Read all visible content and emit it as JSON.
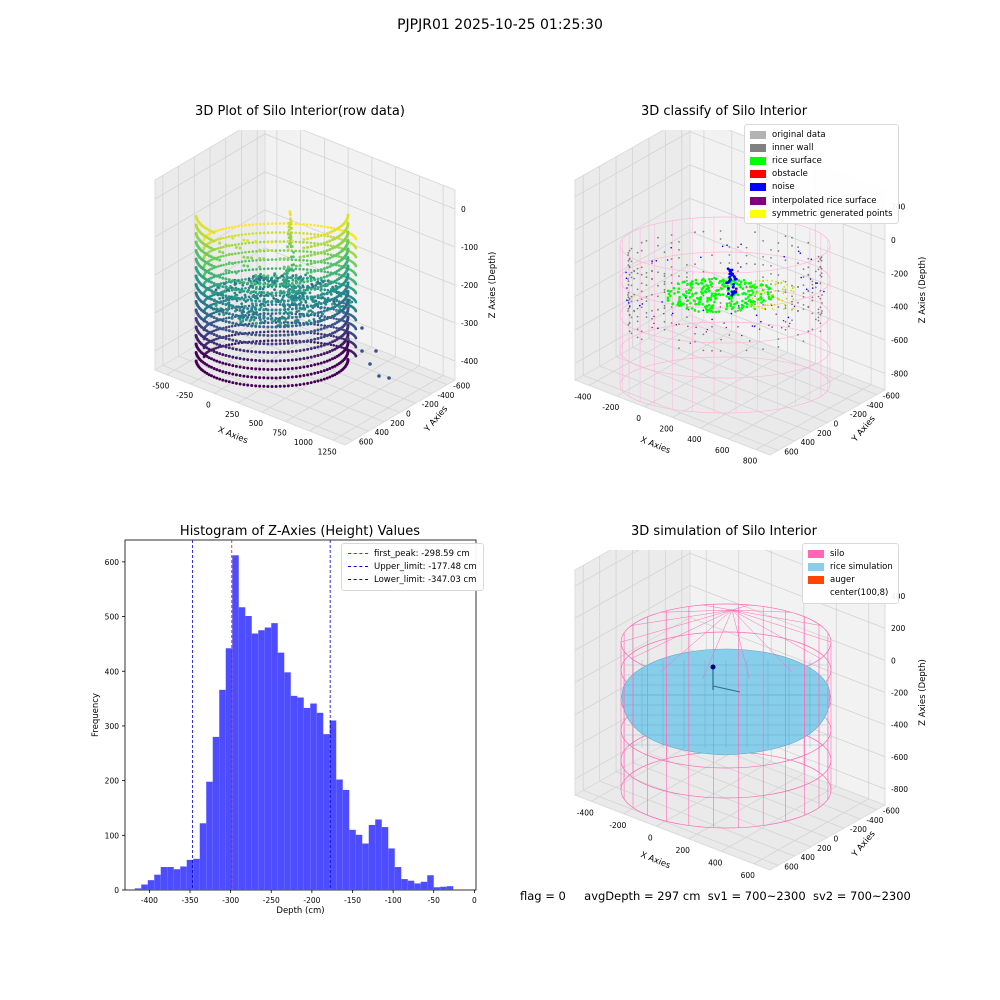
{
  "figure_title": "PJPJR01 2025-10-25 01:25:30",
  "status": {
    "flag": "flag = 0",
    "avg_depth": "avgDepth = 297 cm",
    "sv1": "sv1 = 700~2300",
    "sv2": "sv2 = 700~2300"
  },
  "colors": {
    "hist_bar": "#4d4dff",
    "first_peak": "#ff0000",
    "limits": "#0000cc",
    "viridis": [
      "#440154",
      "#3b528b",
      "#21918c",
      "#5ec962",
      "#fde725"
    ],
    "classify": [
      "#b3b3b3",
      "#808080",
      "#00ff00",
      "#ff0000",
      "#0000ff",
      "#800080",
      "#ffff00"
    ],
    "silo": "#ff69b4",
    "rice_simulation": "#87ceeb",
    "auger": "#ff4500"
  },
  "chart_data": [
    {
      "type": "scatter",
      "projection": "3d",
      "title": "3D Plot of Silo Interior(row data)",
      "xlabel": "X Axies",
      "ylabel": "Y Axies",
      "zlabel": "Z Axies (Depth)",
      "x_ticks": [
        "-500",
        "-250",
        "0",
        "250",
        "500",
        "750",
        "1000",
        "1250"
      ],
      "y_ticks": [
        "-600",
        "-400",
        "-200",
        "0",
        "200",
        "400",
        "600"
      ],
      "z_ticks": [
        "0",
        "-100",
        "-200",
        "-300",
        "-400"
      ],
      "xlim": [
        -600,
        1350
      ],
      "ylim": [
        -650,
        700
      ],
      "zlim": [
        -450,
        10
      ],
      "colormap": "viridis"
    },
    {
      "type": "scatter",
      "projection": "3d",
      "title": "3D classify of Silo Interior",
      "xlabel": "X Axies",
      "ylabel": "Y Axies",
      "zlabel": "Z Axies (Depth)",
      "x_ticks": [
        "-400",
        "-200",
        "0",
        "200",
        "400",
        "600",
        "800"
      ],
      "y_ticks": [
        "-600",
        "-400",
        "-200",
        "0",
        "200",
        "400",
        "600"
      ],
      "z_ticks": [
        "200",
        "0",
        "-200",
        "-400",
        "-600",
        "-800"
      ],
      "legend": [
        "original data",
        "inner wall",
        "rice surface",
        "obstacle",
        "noise",
        "interpolated rice surface",
        "symmetric generated points"
      ],
      "legend_loc": "upper right"
    },
    {
      "type": "bar",
      "title": "Histogram of Z-Axies (Height) Values",
      "xlabel": "Depth (cm)",
      "ylabel": "Frequency",
      "xlim": [
        -430,
        2
      ],
      "ylim": [
        0,
        640
      ],
      "x_ticks": [
        -400,
        -350,
        -300,
        -250,
        -200,
        -150,
        -100,
        -50,
        0
      ],
      "y_ticks": [
        0,
        100,
        200,
        300,
        400,
        500,
        600
      ],
      "bin_start": -418,
      "bin_width": 8,
      "values": [
        3,
        10,
        18,
        28,
        42,
        42,
        38,
        43,
        55,
        57,
        122,
        198,
        280,
        366,
        442,
        612,
        517,
        501,
        469,
        475,
        480,
        488,
        434,
        398,
        355,
        352,
        333,
        341,
        324,
        285,
        310,
        202,
        183,
        110,
        101,
        85,
        119,
        129,
        115,
        76,
        42,
        20,
        17,
        12,
        15,
        27,
        5,
        6,
        7
      ],
      "vlines": [
        {
          "x": -298.59,
          "label": "first_peak: -298.59 cm",
          "color": "red"
        },
        {
          "x": -177.48,
          "label": "Upper_limit: -177.48 cm",
          "color": "blue"
        },
        {
          "x": -347.03,
          "label": "Lower_limit: -347.03 cm",
          "color": "blue"
        }
      ],
      "legend_loc": "upper right"
    },
    {
      "type": "surface",
      "projection": "3d",
      "title": "3D simulation of Silo Interior",
      "xlabel": "X Axies",
      "ylabel": "Y Axies",
      "zlabel": "Z Axies (Depth)",
      "x_ticks": [
        "-400",
        "-200",
        "0",
        "200",
        "400",
        "600"
      ],
      "y_ticks": [
        "-600",
        "-400",
        "-200",
        "0",
        "200",
        "400",
        "600"
      ],
      "z_ticks": [
        "400",
        "200",
        "0",
        "-200",
        "-400",
        "-600",
        "-800"
      ],
      "legend": [
        "silo",
        "rice simulation",
        "auger",
        "center(100,8)"
      ],
      "legend_loc": "upper right"
    }
  ]
}
